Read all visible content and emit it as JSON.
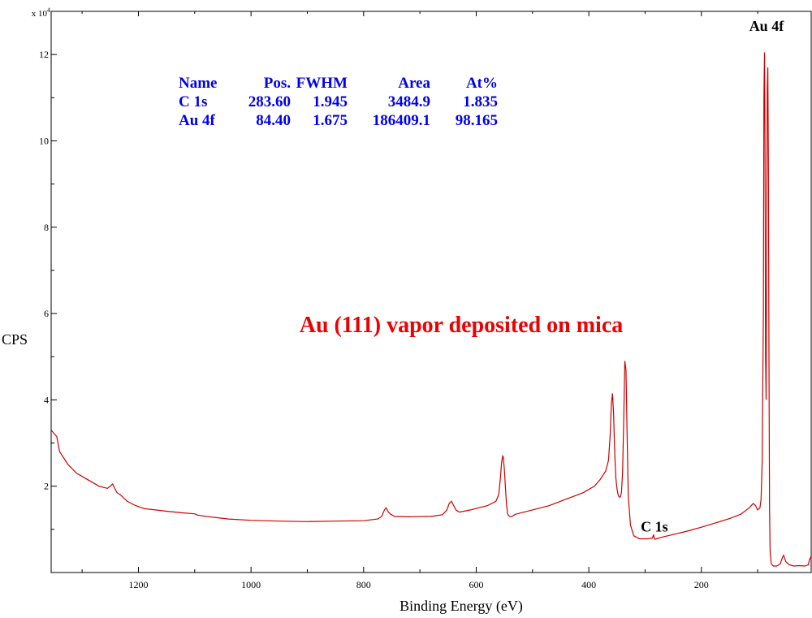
{
  "chart_data": {
    "type": "line",
    "title": "",
    "xlabel": "Binding Energy (eV)",
    "ylabel": "CPS",
    "y_multiplier_label": "x 10",
    "y_multiplier_exponent": "4",
    "xlim": [
      1355,
      5
    ],
    "x_reversed": true,
    "ylim": [
      0,
      13.0
    ],
    "x_ticks": [
      1200,
      1000,
      800,
      600,
      400,
      200
    ],
    "x_tick_labels": [
      "1200",
      "1000",
      "800",
      "600",
      "400",
      "200"
    ],
    "y_ticks": [
      2,
      4,
      6,
      8,
      10,
      12
    ],
    "y_tick_labels": [
      "2",
      "4",
      "6",
      "8",
      "10",
      "12"
    ],
    "grid": false,
    "line_color": "#cc0000",
    "series": [
      {
        "x": [
          1355,
          1345,
          1340,
          1335,
          1325,
          1310,
          1290,
          1270,
          1255,
          1250,
          1246,
          1242,
          1238,
          1232,
          1220,
          1205,
          1190,
          1170,
          1150,
          1120,
          1100,
          1095,
          1090,
          1080,
          1060,
          1040,
          1000,
          950,
          900,
          850,
          800,
          775,
          768,
          763,
          760,
          756,
          752,
          745,
          720,
          680,
          660,
          652,
          648,
          644,
          640,
          636,
          630,
          610,
          580,
          565,
          560,
          557,
          555,
          553,
          552,
          550,
          548,
          546,
          544,
          541,
          538,
          530,
          500,
          470,
          440,
          410,
          390,
          380,
          370,
          365,
          362,
          360,
          358,
          356,
          354,
          352,
          350,
          348,
          346,
          344,
          342,
          340,
          338,
          336,
          334,
          332,
          330,
          326,
          320,
          310,
          295,
          287,
          285,
          283.6,
          282,
          280,
          270,
          250,
          225,
          200,
          175,
          150,
          130,
          115,
          108,
          104,
          100,
          96,
          94,
          92,
          90,
          89,
          88,
          87,
          86,
          85,
          84.4,
          83,
          82,
          81,
          80,
          79,
          78,
          76,
          72,
          66,
          60,
          56,
          54,
          50,
          44,
          36,
          26,
          16,
          10,
          8,
          6,
          5
        ],
        "y": [
          3.3,
          3.15,
          2.8,
          2.7,
          2.5,
          2.3,
          2.15,
          2.0,
          1.95,
          2.0,
          2.05,
          1.95,
          1.85,
          1.8,
          1.65,
          1.55,
          1.48,
          1.45,
          1.42,
          1.38,
          1.36,
          1.33,
          1.32,
          1.3,
          1.27,
          1.24,
          1.21,
          1.19,
          1.18,
          1.19,
          1.2,
          1.24,
          1.3,
          1.45,
          1.5,
          1.4,
          1.35,
          1.3,
          1.29,
          1.3,
          1.34,
          1.45,
          1.6,
          1.65,
          1.55,
          1.45,
          1.4,
          1.45,
          1.55,
          1.65,
          1.8,
          2.2,
          2.55,
          2.7,
          2.68,
          2.4,
          1.95,
          1.55,
          1.35,
          1.3,
          1.29,
          1.35,
          1.45,
          1.55,
          1.7,
          1.85,
          2.0,
          2.15,
          2.35,
          2.6,
          3.2,
          3.9,
          4.15,
          3.7,
          2.8,
          2.2,
          1.95,
          1.8,
          1.75,
          1.75,
          1.85,
          2.3,
          3.5,
          4.9,
          4.7,
          3.2,
          1.8,
          1.1,
          0.85,
          0.78,
          0.78,
          0.8,
          0.88,
          0.78,
          0.77,
          0.78,
          0.82,
          0.88,
          0.96,
          1.05,
          1.15,
          1.25,
          1.35,
          1.5,
          1.6,
          1.55,
          1.45,
          1.5,
          1.7,
          2.6,
          6.0,
          11.0,
          12.05,
          10.0,
          5.0,
          4.0,
          6.5,
          11.2,
          11.7,
          9.5,
          5.0,
          1.5,
          0.5,
          0.2,
          0.15,
          0.15,
          0.2,
          0.35,
          0.4,
          0.25,
          0.18,
          0.15,
          0.16,
          0.15,
          0.18,
          0.3,
          0.35,
          0.3
        ]
      }
    ],
    "quant_table": {
      "headers": [
        "Name",
        "Pos.",
        "FWHM",
        "Area",
        "At%"
      ],
      "rows": [
        [
          "C 1s",
          "283.60",
          "1.945",
          "3484.9",
          "1.835"
        ],
        [
          "Au 4f",
          "84.40",
          "1.675",
          "186409.1",
          "98.165"
        ]
      ],
      "color": "#0000ee"
    },
    "annotations": [
      {
        "text": "Au 4f",
        "x": 84.4,
        "y": 12.55
      },
      {
        "text": "C 1s",
        "x": 283.6,
        "y": 0.95
      }
    ],
    "main_annotation": {
      "text": "Au (111) vapor deposited on mica",
      "color": "#ee0000"
    }
  }
}
